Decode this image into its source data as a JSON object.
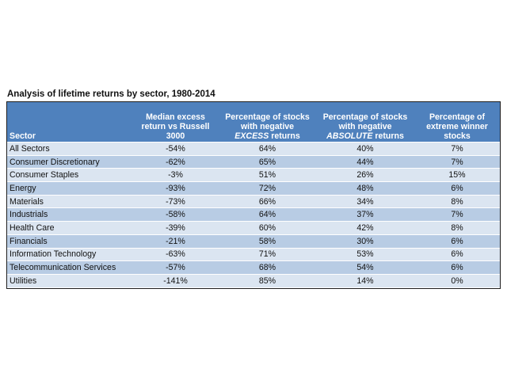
{
  "colors": {
    "header_bg": "#4f81bd",
    "header_text": "#ffffff",
    "row_light": "#dbe5f1",
    "row_dark": "#b8cce4"
  },
  "chart_data": {
    "type": "table",
    "title": "Analysis of lifetime returns by sector, 1980-2014",
    "columns": [
      {
        "lines": [
          "Sector"
        ]
      },
      {
        "lines": [
          "Median excess",
          "return vs Russell",
          "3000"
        ]
      },
      {
        "lines": [
          "Percentage of stocks",
          "with negative"
        ],
        "emph": "EXCESS",
        "suffix": " returns"
      },
      {
        "lines": [
          "Percentage of stocks",
          "with negative"
        ],
        "emph": "ABSOLUTE",
        "suffix": " returns"
      },
      {
        "lines": [
          "Percentage of",
          "extreme winner",
          "stocks"
        ]
      }
    ],
    "rows": [
      [
        "All Sectors",
        "-54%",
        "64%",
        "40%",
        "7%"
      ],
      [
        "Consumer Discretionary",
        "-62%",
        "65%",
        "44%",
        "7%"
      ],
      [
        "Consumer Staples",
        "-3%",
        "51%",
        "26%",
        "15%"
      ],
      [
        "Energy",
        "-93%",
        "72%",
        "48%",
        "6%"
      ],
      [
        "Materials",
        "-73%",
        "66%",
        "34%",
        "8%"
      ],
      [
        "Industrials",
        "-58%",
        "64%",
        "37%",
        "7%"
      ],
      [
        "Health Care",
        "-39%",
        "60%",
        "42%",
        "8%"
      ],
      [
        "Financials",
        "-21%",
        "58%",
        "30%",
        "6%"
      ],
      [
        "Information Technology",
        "-63%",
        "71%",
        "53%",
        "6%"
      ],
      [
        "Telecommunication Services",
        "-57%",
        "68%",
        "54%",
        "6%"
      ],
      [
        "Utilities",
        "-141%",
        "85%",
        "14%",
        "0%"
      ]
    ]
  }
}
